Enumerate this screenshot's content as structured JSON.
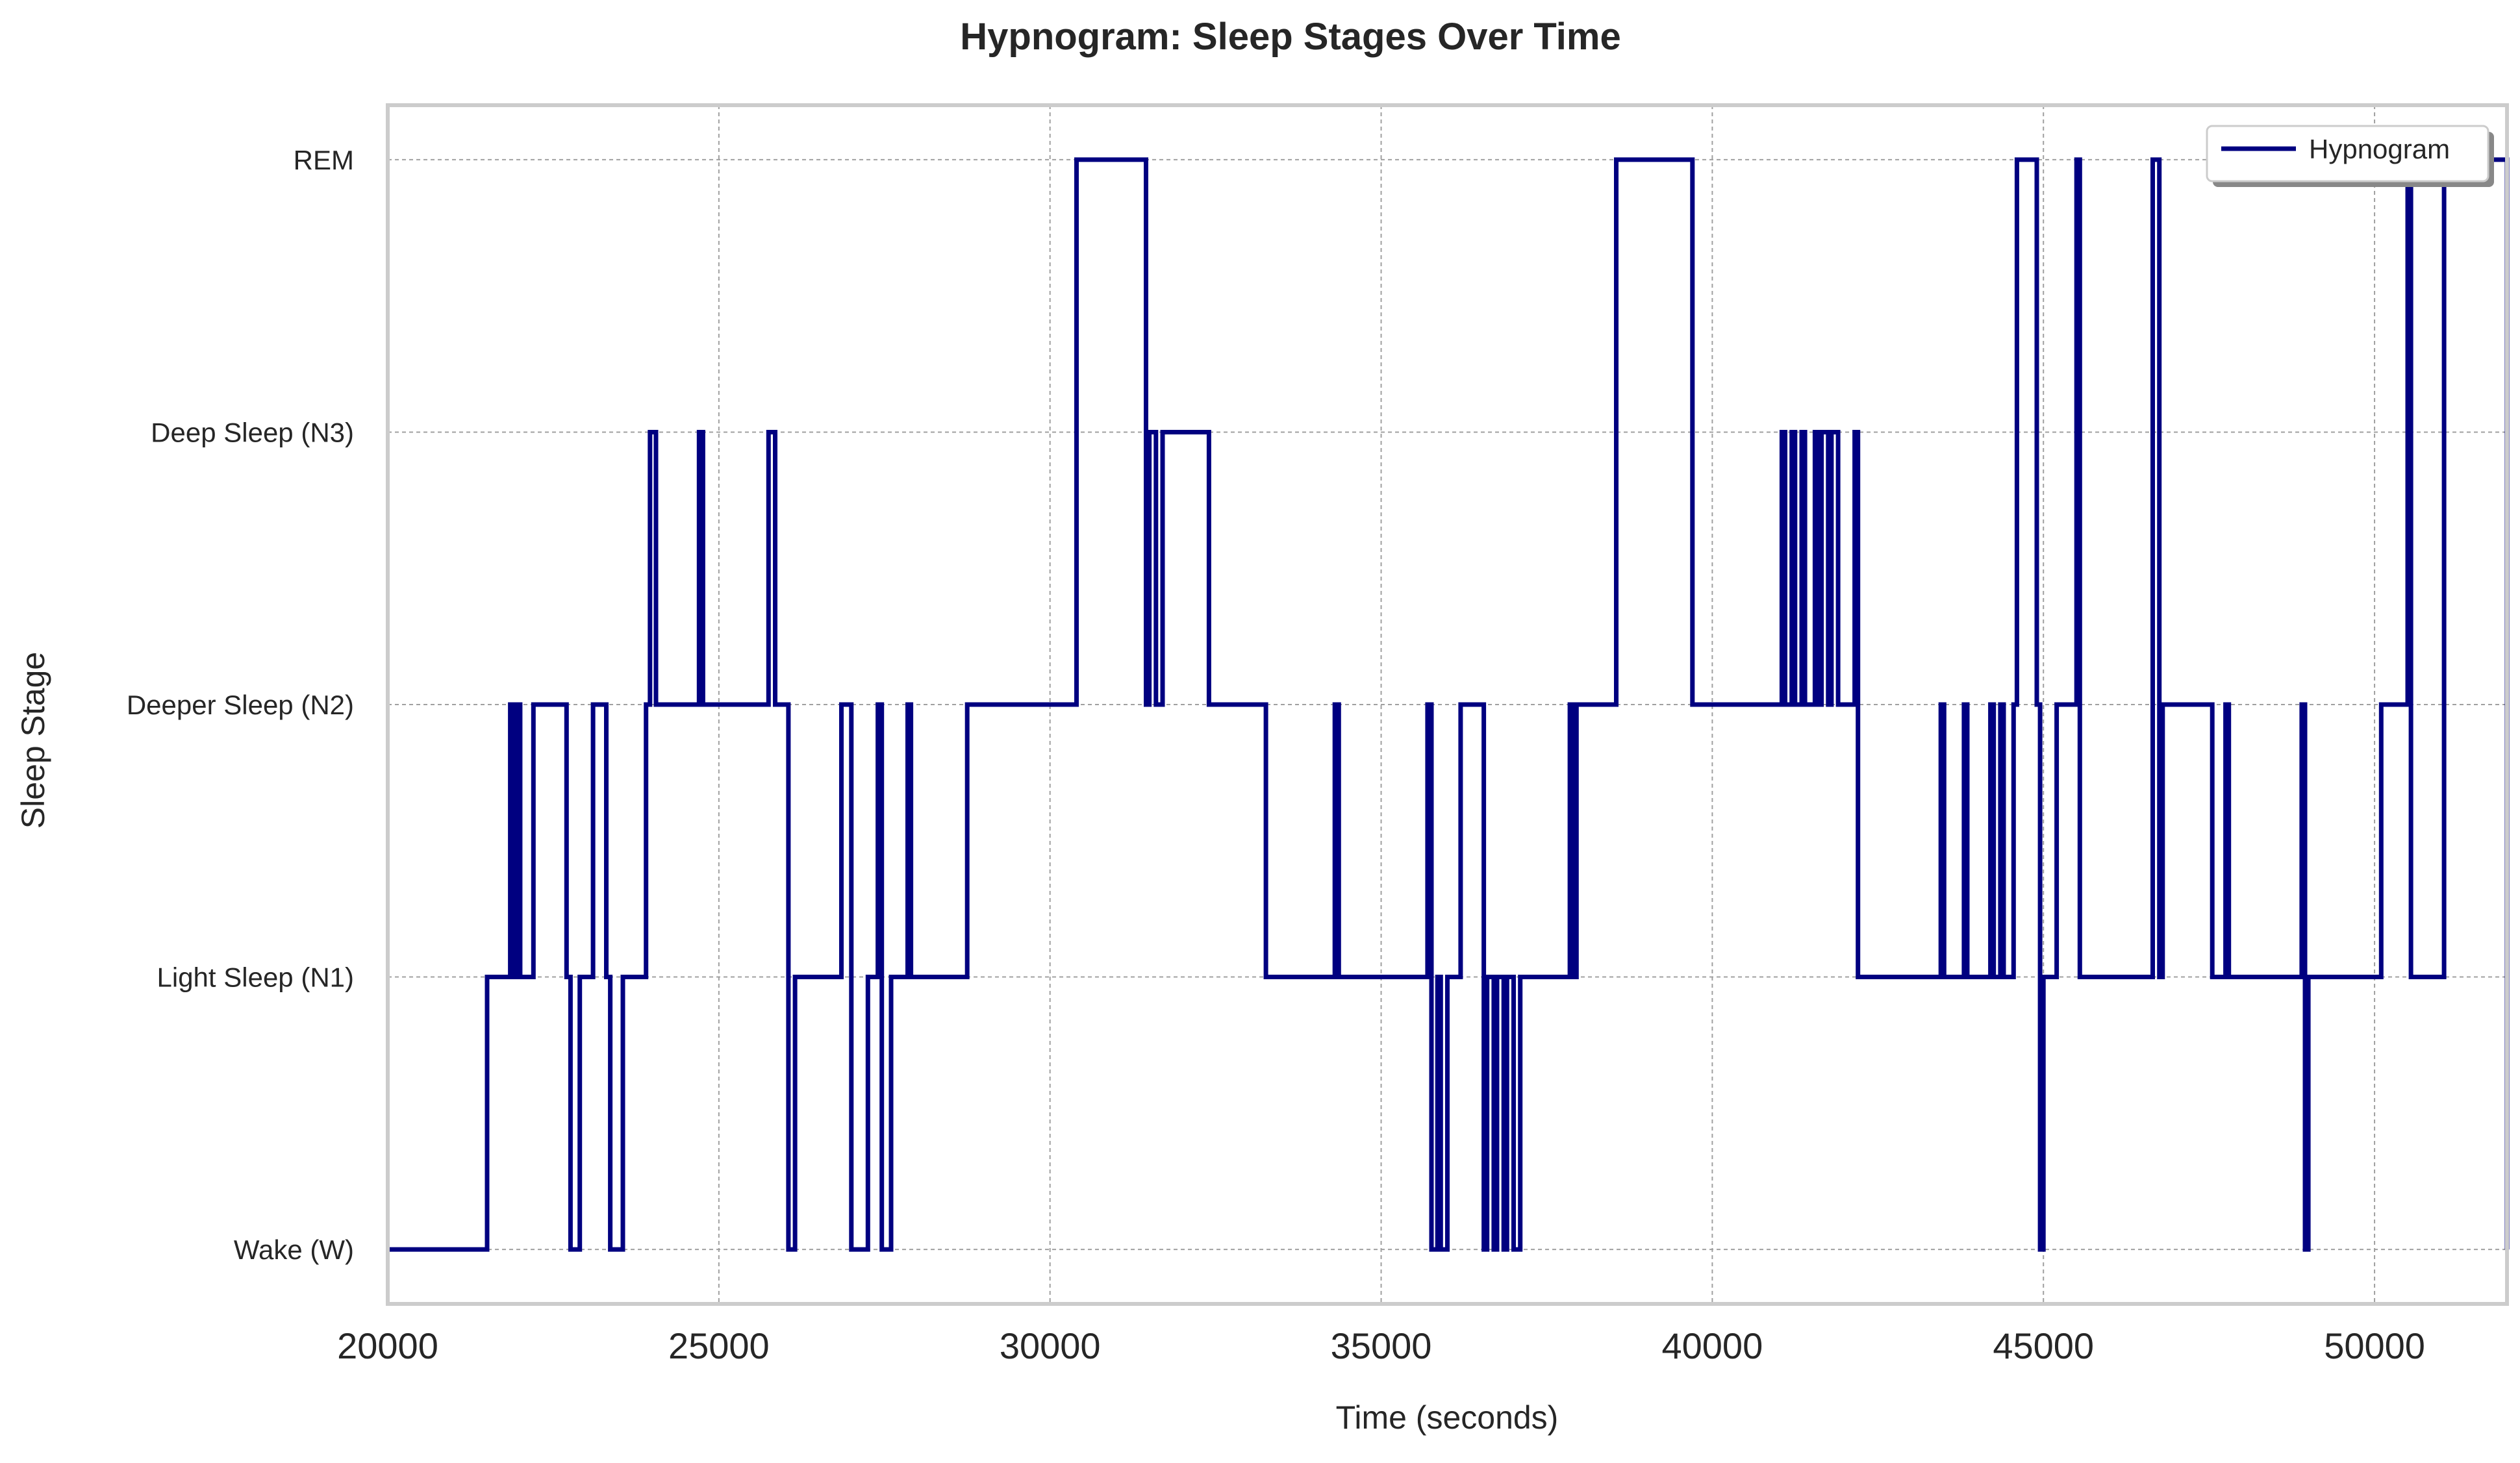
{
  "chart_data": {
    "type": "line",
    "title": "Hypnogram: Sleep Stages Over Time",
    "xlabel": "Time (seconds)",
    "ylabel": "Sleep Stage",
    "xlim": [
      20000,
      52000
    ],
    "ylim": [
      -0.2,
      4.2
    ],
    "x_ticks": [
      20000,
      25000,
      30000,
      35000,
      40000,
      45000,
      50000
    ],
    "y_ticks": [
      {
        "value": 0,
        "label": "Wake (W)"
      },
      {
        "value": 1,
        "label": "Light Sleep (N1)"
      },
      {
        "value": 2,
        "label": "Deeper Sleep (N2)"
      },
      {
        "value": 3,
        "label": "Deep Sleep (N3)"
      },
      {
        "value": 4,
        "label": "REM"
      }
    ],
    "grid": true,
    "legend_position": "top-right",
    "step": "post",
    "series": [
      {
        "name": "Hypnogram",
        "color": "#000080",
        "x": [
          20000,
          21500,
          21850,
          21900,
          21950,
          22000,
          22200,
          22700,
          22760,
          22900,
          23100,
          23300,
          23360,
          23550,
          23900,
          23960,
          24050,
          24700,
          24760,
          25750,
          25850,
          26050,
          26150,
          26850,
          27000,
          27250,
          27400,
          27460,
          27600,
          27850,
          27900,
          28750,
          30400,
          31450,
          31500,
          31600,
          31700,
          32400,
          33200,
          33260,
          34300,
          34360,
          35700,
          35760,
          35850,
          35900,
          36000,
          36200,
          36550,
          36600,
          36700,
          36750,
          36850,
          36900,
          37000,
          37100,
          37850,
          37900,
          37950,
          38550,
          39700,
          41050,
          41100,
          41200,
          41250,
          41350,
          41400,
          41550,
          41600,
          41650,
          41750,
          41800,
          41900,
          42150,
          42200,
          43450,
          43500,
          43800,
          43850,
          44200,
          44250,
          44350,
          44400,
          44550,
          44600,
          44900,
          44950,
          45000,
          45200,
          45500,
          45550,
          46650,
          46750,
          46800,
          47500,
          47550,
          47750,
          47800,
          48900,
          48950,
          49000,
          50100,
          50500,
          50550,
          51050,
          52000
        ],
        "y": [
          0,
          1,
          2,
          1,
          2,
          1,
          2,
          1,
          0,
          1,
          2,
          1,
          0,
          1,
          2,
          3,
          2,
          3,
          2,
          3,
          2,
          0,
          1,
          2,
          0,
          1,
          2,
          0,
          1,
          2,
          1,
          2,
          4,
          2,
          3,
          2,
          3,
          2,
          2,
          1,
          2,
          1,
          2,
          0,
          1,
          0,
          1,
          2,
          0,
          1,
          0,
          1,
          0,
          1,
          0,
          1,
          2,
          1,
          2,
          4,
          2,
          3,
          2,
          3,
          2,
          3,
          2,
          3,
          2,
          3,
          2,
          3,
          2,
          3,
          1,
          2,
          1,
          2,
          1,
          2,
          1,
          2,
          1,
          2,
          4,
          2,
          0,
          1,
          2,
          4,
          1,
          4,
          1,
          2,
          2,
          1,
          2,
          1,
          2,
          0,
          1,
          2,
          4,
          1,
          4,
          0
        ]
      }
    ]
  }
}
